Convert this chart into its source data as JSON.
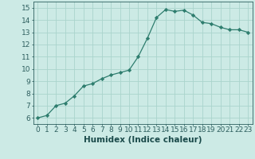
{
  "x": [
    0,
    1,
    2,
    3,
    4,
    5,
    6,
    7,
    8,
    9,
    10,
    11,
    12,
    13,
    14,
    15,
    16,
    17,
    18,
    19,
    20,
    21,
    22,
    23
  ],
  "y": [
    6.0,
    6.2,
    7.0,
    7.2,
    7.8,
    8.6,
    8.8,
    9.2,
    9.5,
    9.7,
    9.9,
    11.0,
    12.5,
    14.2,
    14.85,
    14.7,
    14.8,
    14.4,
    13.8,
    13.7,
    13.4,
    13.2,
    13.2,
    13.0
  ],
  "line_color": "#2e7d6e",
  "marker": "D",
  "marker_size": 2.2,
  "bg_color": "#cceae5",
  "grid_color": "#aad4cc",
  "xlabel": "Humidex (Indice chaleur)",
  "xlim": [
    -0.5,
    23.5
  ],
  "ylim": [
    5.5,
    15.5
  ],
  "xticks": [
    0,
    1,
    2,
    3,
    4,
    5,
    6,
    7,
    8,
    9,
    10,
    11,
    12,
    13,
    14,
    15,
    16,
    17,
    18,
    19,
    20,
    21,
    22,
    23
  ],
  "yticks": [
    6,
    7,
    8,
    9,
    10,
    11,
    12,
    13,
    14,
    15
  ],
  "tick_color": "#2e5f5f",
  "label_color": "#1a4a4a",
  "xlabel_fontsize": 7.5,
  "tick_fontsize": 6.5
}
